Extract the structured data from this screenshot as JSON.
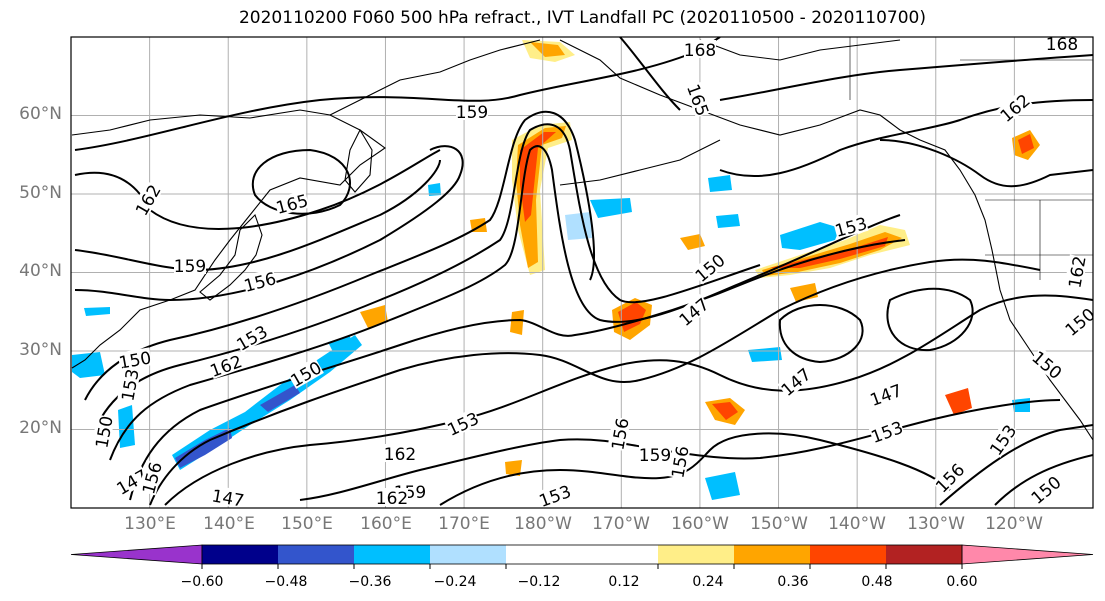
{
  "title": "2020110200 F060 500 hPa refract., IVT Landfall PC (2020110500 - 2020110700)",
  "lat_labels": [
    {
      "text": "60°N",
      "lat": 60
    },
    {
      "text": "50°N",
      "lat": 50
    },
    {
      "text": "40°N",
      "lat": 40
    },
    {
      "text": "30°N",
      "lat": 30
    },
    {
      "text": "20°N",
      "lat": 20
    }
  ],
  "lon_labels": [
    "130°E",
    "140°E",
    "150°E",
    "160°E",
    "170°E",
    "180°W",
    "170°W",
    "160°W",
    "150°W",
    "140°W",
    "130°W",
    "120°W"
  ],
  "map_extent": {
    "lon_min": 120,
    "lon_max": 250,
    "lat_min": 10,
    "lat_max": 70
  },
  "contour_labels": [
    "168",
    "165",
    "159",
    "162",
    "165",
    "159",
    "156",
    "153",
    "162",
    "150",
    "153",
    "150",
    "147",
    "150",
    "153",
    "162",
    "159",
    "162",
    "147",
    "153",
    "156",
    "159",
    "156",
    "150",
    "147",
    "147",
    "147",
    "153",
    "156",
    "162",
    "153",
    "150",
    "168",
    "153",
    "150",
    "156",
    "150",
    "162"
  ],
  "colorbar": {
    "ticks": [
      "−0.60",
      "−0.48",
      "−0.36",
      "−0.24",
      "−0.12",
      "0.12",
      "0.24",
      "0.36",
      "0.48",
      "0.60"
    ],
    "colors": {
      "under": "#9933cc",
      "bins": [
        "#00008b",
        "#3355cc",
        "#00bfff",
        "#b0e0ff",
        "#ffffff",
        "#ffee88",
        "#ffa500",
        "#ff4500",
        "#b22222"
      ],
      "over": "#ff88aa"
    },
    "edges": [
      -0.6,
      -0.48,
      -0.36,
      -0.24,
      -0.12,
      0.12,
      0.24,
      0.36,
      0.48,
      0.6
    ]
  },
  "colors": {
    "grid": "#b0b0b0",
    "contour": "#000000",
    "coast": "#000000",
    "neg_strong": "#3355cc",
    "neg_mid": "#00bfff",
    "neg_weak": "#b0e0ff",
    "pos_weak": "#ffee88",
    "pos_mid": "#ffa500",
    "pos_strong": "#ff4500",
    "pos_extreme": "#b22222"
  }
}
